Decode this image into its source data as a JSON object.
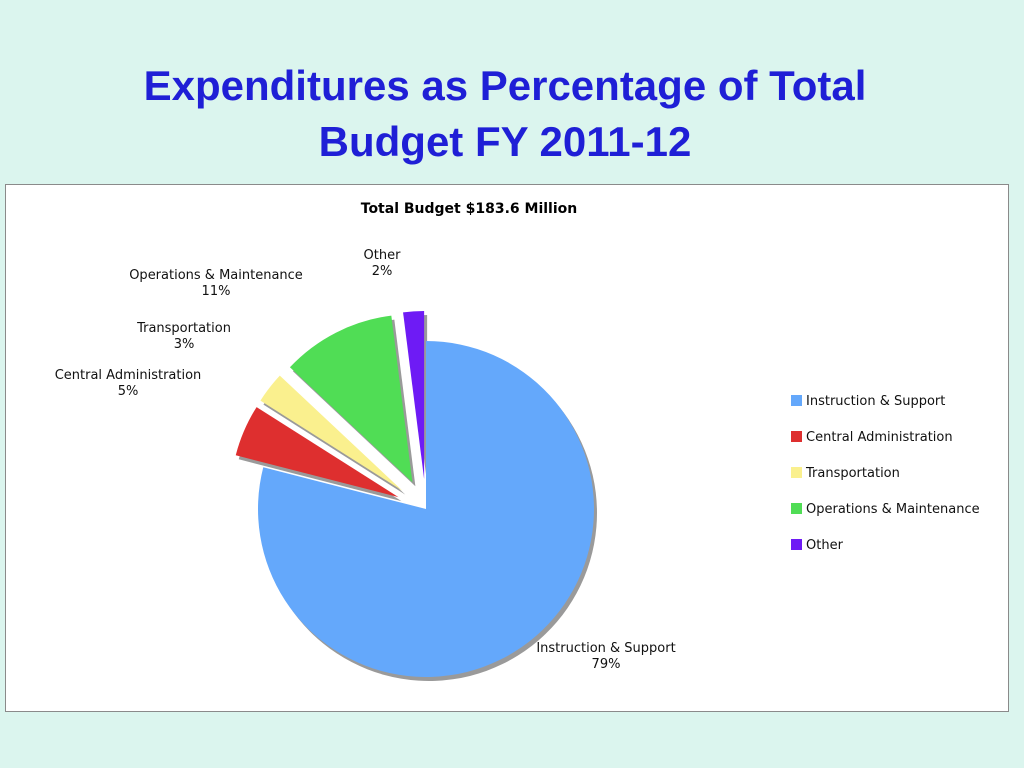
{
  "slide": {
    "title_line1": "Expenditures as Percentage of Total",
    "title_line2": "Budget FY 2011-12"
  },
  "chart_data": {
    "type": "pie",
    "title": "Total Budget $183.6 Million",
    "categories": [
      "Instruction & Support",
      "Central Administration",
      "Transportation",
      "Operations & Maintenance",
      "Other"
    ],
    "values": [
      79,
      5,
      3,
      11,
      2
    ],
    "units": "%",
    "data_labels": [
      "79%",
      "5%",
      "3%",
      "11%",
      "2%"
    ],
    "colors": [
      "#64a8fb",
      "#de2f2f",
      "#faf08e",
      "#50dd55",
      "#6e1bf5"
    ],
    "exploded": [
      false,
      true,
      true,
      true,
      true
    ],
    "legend_position": "right"
  }
}
